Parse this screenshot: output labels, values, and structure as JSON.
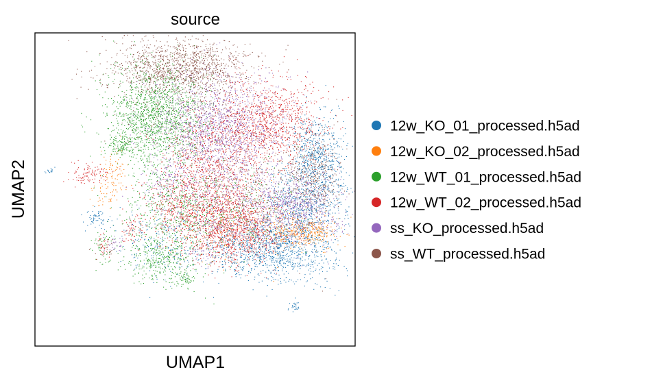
{
  "chart_data": {
    "type": "scatter",
    "title": "source",
    "xlabel": "UMAP1",
    "ylabel": "UMAP2",
    "xlim": [
      -10,
      10
    ],
    "ylim": [
      -10,
      10
    ],
    "grid": false,
    "legend_placement": "right",
    "series": [
      {
        "name": "12w_KO_01_processed.h5ad",
        "color": "#1f77b4",
        "clusters": [
          {
            "x": 4.9,
            "y": -3.9,
            "sx": 1.9,
            "sy": 1.0,
            "n": 1100
          },
          {
            "x": 7.6,
            "y": 1.9,
            "sx": 0.9,
            "sy": 1.6,
            "n": 700
          },
          {
            "x": 6.6,
            "y": -1.2,
            "sx": 1.4,
            "sy": 1.1,
            "n": 500
          },
          {
            "x": -1.8,
            "y": -3.2,
            "sx": 1.6,
            "sy": 1.2,
            "n": 250
          },
          {
            "x": -6.2,
            "y": -1.9,
            "sx": 0.4,
            "sy": 0.3,
            "n": 60
          },
          {
            "x": 6.2,
            "y": -7.5,
            "sx": 0.2,
            "sy": 0.15,
            "n": 25
          },
          {
            "x": -9.0,
            "y": 1.2,
            "sx": 0.2,
            "sy": 0.1,
            "n": 15
          }
        ]
      },
      {
        "name": "12w_KO_02_processed.h5ad",
        "color": "#ff7f0e",
        "clusters": [
          {
            "x": 6.8,
            "y": -2.7,
            "sx": 1.0,
            "sy": 0.5,
            "n": 350
          },
          {
            "x": 2.5,
            "y": -2.5,
            "sx": 2.2,
            "sy": 1.2,
            "n": 220
          },
          {
            "x": -5.0,
            "y": 1.0,
            "sx": 0.4,
            "sy": 0.8,
            "n": 80
          },
          {
            "x": -5.5,
            "y": -0.3,
            "sx": 0.5,
            "sy": 0.5,
            "n": 40
          }
        ]
      },
      {
        "name": "12w_WT_01_processed.h5ad",
        "color": "#2ca02c",
        "clusters": [
          {
            "x": -2.4,
            "y": 4.7,
            "sx": 1.5,
            "sy": 1.6,
            "n": 1500
          },
          {
            "x": -1.2,
            "y": -1.4,
            "sx": 1.7,
            "sy": 1.6,
            "n": 600
          },
          {
            "x": -4.6,
            "y": 2.8,
            "sx": 0.5,
            "sy": 0.3,
            "n": 120
          },
          {
            "x": -2.2,
            "y": -4.5,
            "sx": 1.2,
            "sy": 0.7,
            "n": 300
          },
          {
            "x": -0.6,
            "y": -5.7,
            "sx": 0.4,
            "sy": 0.4,
            "n": 60
          },
          {
            "x": -5.8,
            "y": -3.6,
            "sx": 0.3,
            "sy": 0.6,
            "n": 50
          },
          {
            "x": 3.2,
            "y": -1.2,
            "sx": 1.8,
            "sy": 1.5,
            "n": 200
          }
        ]
      },
      {
        "name": "12w_WT_02_processed.h5ad",
        "color": "#d62728",
        "clusters": [
          {
            "x": 4.2,
            "y": 4.2,
            "sx": 1.8,
            "sy": 1.4,
            "n": 1100
          },
          {
            "x": 2.3,
            "y": -2.5,
            "sx": 1.6,
            "sy": 1.1,
            "n": 1100
          },
          {
            "x": 0.7,
            "y": 0.9,
            "sx": 1.7,
            "sy": 1.8,
            "n": 900
          },
          {
            "x": -1.0,
            "y": -1.4,
            "sx": 1.0,
            "sy": 1.0,
            "n": 250
          },
          {
            "x": -6.6,
            "y": 1.0,
            "sx": 0.6,
            "sy": 0.35,
            "n": 100
          },
          {
            "x": -3.9,
            "y": -2.6,
            "sx": 0.35,
            "sy": 0.4,
            "n": 60
          },
          {
            "x": -5.7,
            "y": -3.5,
            "sx": 0.2,
            "sy": 0.4,
            "n": 30
          }
        ]
      },
      {
        "name": "ss_KO_processed.h5ad",
        "color": "#9467bd",
        "clusters": [
          {
            "x": 1.5,
            "y": 4.1,
            "sx": 2.0,
            "sy": 1.7,
            "n": 1400
          },
          {
            "x": 6.3,
            "y": -1.3,
            "sx": 1.4,
            "sy": 1.1,
            "n": 700
          },
          {
            "x": 1.8,
            "y": -0.6,
            "sx": 2.1,
            "sy": 1.8,
            "n": 500
          },
          {
            "x": -1.7,
            "y": 0.6,
            "sx": 0.6,
            "sy": 0.7,
            "n": 100
          },
          {
            "x": -5.0,
            "y": -3.5,
            "sx": 0.3,
            "sy": 0.3,
            "n": 30
          },
          {
            "x": 0.6,
            "y": -4.1,
            "sx": 0.4,
            "sy": 0.3,
            "n": 30
          }
        ]
      },
      {
        "name": "ss_WT_processed.h5ad",
        "color": "#8c564b",
        "clusters": [
          {
            "x": -1.0,
            "y": 7.8,
            "sx": 2.3,
            "sy": 0.9,
            "n": 1300
          },
          {
            "x": 7.3,
            "y": 0.9,
            "sx": 0.9,
            "sy": 1.3,
            "n": 450
          },
          {
            "x": 3.5,
            "y": -0.6,
            "sx": 2.2,
            "sy": 1.8,
            "n": 450
          },
          {
            "x": 0.0,
            "y": 4.6,
            "sx": 2.0,
            "sy": 1.5,
            "n": 300
          },
          {
            "x": -5.6,
            "y": -3.8,
            "sx": 0.3,
            "sy": 0.3,
            "n": 20
          }
        ]
      }
    ]
  }
}
